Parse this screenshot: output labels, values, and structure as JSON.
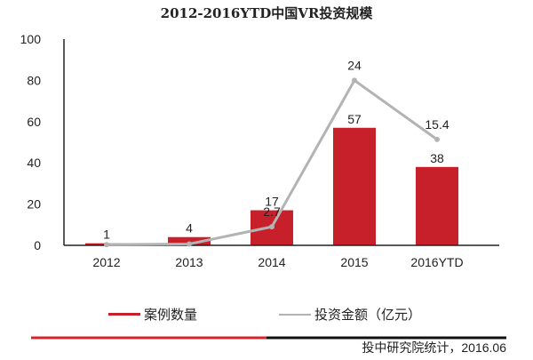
{
  "chart_data": {
    "type": "bar+line",
    "title": "2012-2016YTD中国VR投资规模",
    "categories": [
      "2012",
      "2013",
      "2014",
      "2015",
      "2016YTD"
    ],
    "ylim": [
      0,
      100
    ],
    "yticks": [
      0,
      20,
      40,
      60,
      80,
      100
    ],
    "grid": false,
    "legend": "bottom",
    "series": [
      {
        "name": "案例数量",
        "type": "bar",
        "color": "#c8202a",
        "values": [
          1,
          4,
          17,
          57,
          38
        ],
        "labels": [
          "1",
          "4",
          "17",
          "57",
          "38"
        ]
      },
      {
        "name": "投资金额（亿元）",
        "type": "line",
        "color": "#b3b3b3",
        "values": [
          0.1,
          0.2,
          2.7,
          24,
          15.4
        ],
        "labels": [
          "",
          "",
          "2.7",
          "24",
          "15.4"
        ]
      }
    ]
  },
  "source": "投中研究院统计，2016.06"
}
